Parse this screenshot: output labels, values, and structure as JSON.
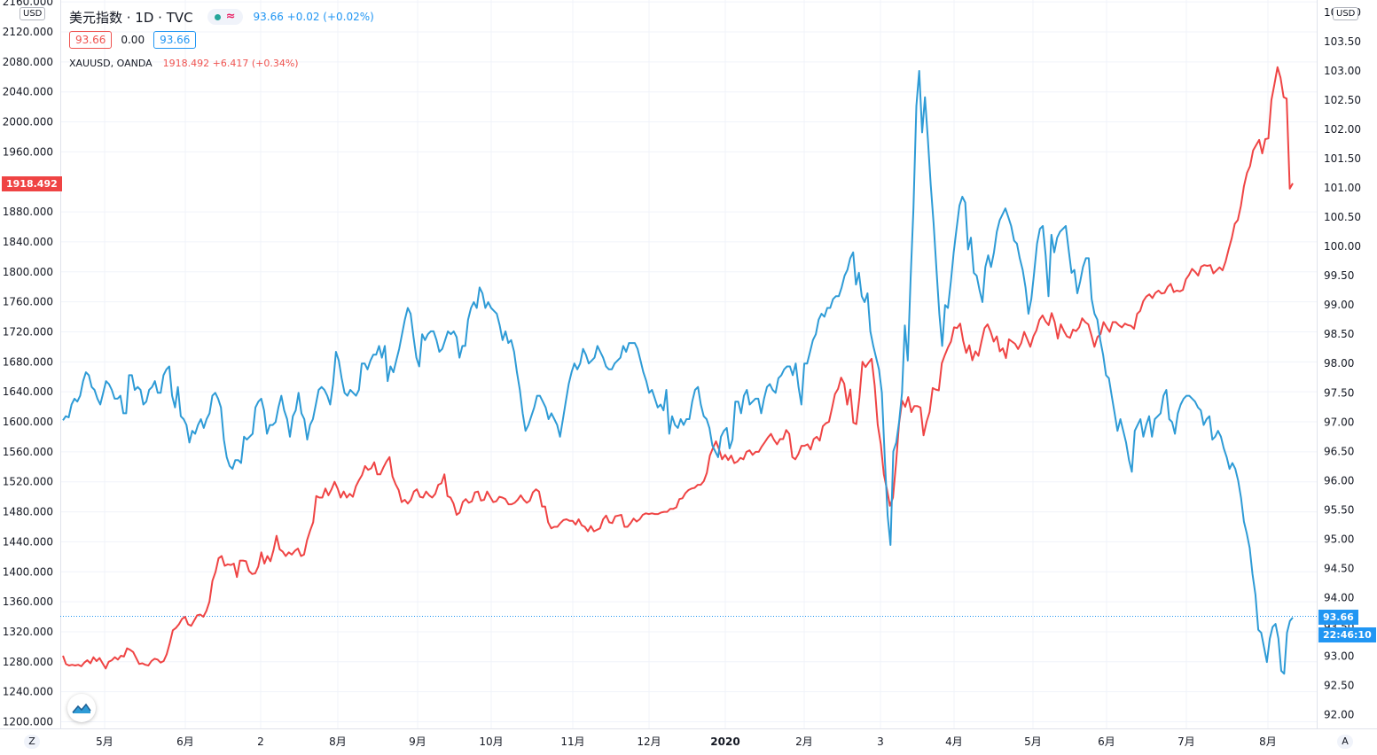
{
  "header": {
    "title": "美元指数 · 1D · TVC",
    "toggle_symbol": "≈",
    "dxy_quote": "93.66 +0.02 (+0.02%)",
    "box_left": "93.66",
    "box_mid": "0.00",
    "box_right": "93.66",
    "xau_name": "XAUUSD, OANDA",
    "xau_quote": "1918.492 +6.417 (+0.34%)"
  },
  "axis_badges": {
    "left_unit": "USD",
    "right_unit": "USD",
    "left_corner": "Z",
    "right_corner": "A"
  },
  "price_tags": {
    "gold": "1918.492",
    "dxy": "93.66",
    "countdown": "22:46:10"
  },
  "colors": {
    "gold": "#ef4444",
    "dxy": "#2e9bd6",
    "dxy_tag": "#2196f3",
    "gold_tag": "#ef4444",
    "grid": "#f0f3fa"
  },
  "chart_data": {
    "type": "line",
    "x_ticks": [
      "5月",
      "6月",
      "2",
      "8月",
      "9月",
      "10月",
      "11月",
      "12月",
      "2020",
      "2月",
      "3",
      "4月",
      "5月",
      "6月",
      "7月",
      "8月"
    ],
    "left_axis": {
      "unit": "USD",
      "ticks": [
        "2160.000",
        "2120.000",
        "2080.000",
        "2040.000",
        "2000.000",
        "1960.000",
        "1880.000",
        "1840.000",
        "1800.000",
        "1760.000",
        "1720.000",
        "1680.000",
        "1640.000",
        "1600.000",
        "1560.000",
        "1520.000",
        "1480.000",
        "1440.000",
        "1400.000",
        "1360.000",
        "1320.000",
        "1280.000",
        "1240.000",
        "1200.000"
      ]
    },
    "right_axis": {
      "unit": "USD",
      "ticks": [
        "104.00",
        "103.50",
        "103.00",
        "102.50",
        "102.00",
        "101.50",
        "101.00",
        "100.50",
        "100.00",
        "99.50",
        "99.00",
        "98.50",
        "98.00",
        "97.50",
        "97.00",
        "96.50",
        "96.00",
        "95.50",
        "95.00",
        "94.50",
        "94.00",
        "93.50",
        "93.00",
        "92.50",
        "92.00"
      ]
    },
    "series": [
      {
        "axis": "left",
        "color": "#ef4444",
        "values": [
          1288,
          1277,
          1275,
          1276,
          1275,
          1276,
          1274,
          1279,
          1282,
          1278,
          1286,
          1281,
          1285,
          1278,
          1271,
          1280,
          1282,
          1286,
          1283,
          1288,
          1287,
          1298,
          1296,
          1293,
          1285,
          1277,
          1278,
          1276,
          1275,
          1281,
          1284,
          1283,
          1279,
          1281,
          1290,
          1305,
          1322,
          1325,
          1330,
          1337,
          1340,
          1330,
          1328,
          1335,
          1342,
          1343,
          1340,
          1348,
          1360,
          1388,
          1400,
          1418,
          1421,
          1408,
          1410,
          1409,
          1411,
          1393,
          1415,
          1415,
          1414,
          1401,
          1397,
          1398,
          1407,
          1426,
          1411,
          1421,
          1414,
          1429,
          1448,
          1430,
          1427,
          1421,
          1426,
          1423,
          1428,
          1431,
          1421,
          1423,
          1442,
          1455,
          1466,
          1501,
          1499,
          1499,
          1511,
          1502,
          1510,
          1520,
          1511,
          1499,
          1507,
          1499,
          1504,
          1500,
          1514,
          1522,
          1529,
          1541,
          1536,
          1538,
          1546,
          1530,
          1530,
          1539,
          1547,
          1553,
          1527,
          1517,
          1509,
          1493,
          1496,
          1491,
          1496,
          1507,
          1510,
          1500,
          1499,
          1507,
          1502,
          1499,
          1504,
          1516,
          1518,
          1530,
          1501,
          1499,
          1491,
          1476,
          1479,
          1493,
          1497,
          1492,
          1494,
          1506,
          1507,
          1495,
          1496,
          1507,
          1500,
          1493,
          1494,
          1500,
          1499,
          1497,
          1490,
          1490,
          1492,
          1496,
          1502,
          1496,
          1492,
          1495,
          1506,
          1510,
          1507,
          1487,
          1487,
          1466,
          1458,
          1460,
          1460,
          1465,
          1469,
          1470,
          1468,
          1468,
          1463,
          1470,
          1462,
          1460,
          1454,
          1461,
          1454,
          1456,
          1458,
          1470,
          1475,
          1466,
          1465,
          1474,
          1475,
          1476,
          1460,
          1460,
          1465,
          1471,
          1467,
          1470,
          1476,
          1478,
          1477,
          1478,
          1477,
          1477,
          1479,
          1480,
          1480,
          1484,
          1484,
          1486,
          1497,
          1498,
          1505,
          1509,
          1511,
          1512,
          1516,
          1516,
          1521,
          1532,
          1555,
          1565,
          1574,
          1563,
          1550,
          1556,
          1549,
          1555,
          1545,
          1547,
          1552,
          1550,
          1560,
          1562,
          1556,
          1560,
          1560,
          1567,
          1573,
          1579,
          1584,
          1576,
          1570,
          1577,
          1577,
          1589,
          1584,
          1553,
          1550,
          1557,
          1568,
          1568,
          1570,
          1563,
          1577,
          1580,
          1575,
          1594,
          1598,
          1600,
          1618,
          1637,
          1644,
          1659,
          1651,
          1623,
          1643,
          1599,
          1597,
          1633,
          1680,
          1673,
          1679,
          1684,
          1648,
          1596,
          1570,
          1530,
          1510,
          1488,
          1499,
          1545,
          1598,
          1628,
          1620,
          1633,
          1613,
          1621,
          1621,
          1619,
          1582,
          1600,
          1613,
          1645,
          1643,
          1642,
          1678,
          1689,
          1699,
          1707,
          1726,
          1725,
          1731,
          1708,
          1692,
          1702,
          1682,
          1694,
          1688,
          1707,
          1725,
          1730,
          1720,
          1707,
          1714,
          1694,
          1698,
          1685,
          1710,
          1707,
          1704,
          1697,
          1705,
          1720,
          1710,
          1700,
          1714,
          1722,
          1736,
          1742,
          1734,
          1729,
          1745,
          1733,
          1711,
          1730,
          1721,
          1714,
          1712,
          1723,
          1721,
          1726,
          1738,
          1733,
          1730,
          1716,
          1700,
          1713,
          1717,
          1733,
          1726,
          1720,
          1733,
          1733,
          1729,
          1726,
          1731,
          1729,
          1728,
          1724,
          1744,
          1748,
          1761,
          1767,
          1770,
          1765,
          1772,
          1775,
          1771,
          1772,
          1780,
          1784,
          1773,
          1775,
          1774,
          1776,
          1790,
          1796,
          1804,
          1800,
          1795,
          1807,
          1809,
          1808,
          1809,
          1798,
          1802,
          1806,
          1802,
          1814,
          1830,
          1845,
          1864,
          1869,
          1888,
          1914,
          1932,
          1941,
          1962,
          1969,
          1976,
          1958,
          1977,
          1978,
          2029,
          2050,
          2073,
          2059,
          2033,
          2031,
          1911,
          1918
        ],
        "first_date": "2019-04-24"
      },
      {
        "axis": "right",
        "color": "#2e9bd6",
        "values": [
          97.03,
          97.1,
          97.08,
          97.3,
          97.4,
          97.35,
          97.45,
          97.7,
          97.85,
          97.8,
          97.6,
          97.55,
          97.4,
          97.3,
          97.5,
          97.7,
          97.65,
          97.55,
          97.4,
          97.4,
          97.45,
          97.15,
          97.15,
          97.8,
          97.8,
          97.55,
          97.6,
          97.55,
          97.3,
          97.35,
          97.55,
          97.6,
          97.7,
          97.5,
          97.5,
          97.8,
          97.9,
          97.95,
          97.45,
          97.25,
          97.6,
          97.1,
          97.05,
          96.95,
          96.65,
          96.85,
          96.8,
          96.95,
          97.05,
          96.9,
          97.05,
          97.15,
          97.45,
          97.5,
          97.4,
          97.25,
          96.7,
          96.4,
          96.25,
          96.2,
          96.35,
          96.35,
          96.3,
          96.75,
          96.7,
          96.75,
          96.8,
          97.25,
          97.35,
          97.4,
          97.2,
          96.8,
          96.95,
          96.95,
          97.0,
          97.25,
          97.45,
          97.2,
          97.05,
          96.75,
          97.1,
          97.2,
          97.5,
          97.15,
          97.05,
          96.7,
          96.95,
          97.05,
          97.3,
          97.55,
          97.6,
          97.55,
          97.45,
          97.3,
          97.65,
          98.2,
          98.05,
          97.75,
          97.5,
          97.45,
          97.55,
          97.5,
          97.45,
          97.55,
          98.0,
          98.0,
          97.9,
          98.05,
          98.15,
          98.15,
          98.3,
          98.1,
          98.3,
          97.7,
          97.95,
          97.85,
          98.05,
          98.25,
          98.5,
          98.75,
          98.95,
          98.85,
          98.45,
          98.1,
          97.95,
          98.5,
          98.4,
          98.5,
          98.55,
          98.55,
          98.4,
          98.2,
          98.25,
          98.4,
          98.55,
          98.5,
          98.55,
          98.45,
          98.1,
          98.3,
          98.3,
          98.75,
          98.95,
          99.05,
          98.95,
          99.3,
          99.2,
          98.95,
          99.05,
          98.95,
          98.9,
          98.85,
          98.65,
          98.4,
          98.55,
          98.35,
          98.4,
          98.2,
          97.85,
          97.55,
          97.15,
          96.85,
          96.95,
          97.1,
          97.25,
          97.45,
          97.45,
          97.35,
          97.25,
          97.05,
          97.15,
          97.05,
          96.95,
          96.75,
          97.05,
          97.35,
          97.65,
          97.85,
          98.0,
          97.9,
          98.0,
          98.25,
          98.15,
          98.0,
          98.05,
          98.1,
          98.3,
          98.2,
          98.1,
          97.95,
          97.9,
          97.9,
          98.0,
          98.05,
          98.1,
          98.3,
          98.2,
          98.35,
          98.35,
          98.35,
          98.25,
          98.05,
          97.85,
          97.7,
          97.5,
          97.55,
          97.4,
          97.25,
          97.3,
          97.2,
          97.55,
          96.8,
          97.1,
          96.95,
          96.9,
          97.05,
          96.95,
          97.05,
          97.05,
          97.35,
          97.55,
          97.6,
          97.3,
          97.1,
          97.05,
          96.9,
          96.6,
          96.5,
          96.4,
          96.75,
          96.85,
          96.9,
          96.55,
          96.7,
          97.35,
          97.35,
          97.15,
          97.45,
          97.55,
          97.3,
          97.35,
          97.4,
          97.4,
          97.15,
          97.4,
          97.6,
          97.65,
          97.55,
          97.5,
          97.75,
          97.8,
          97.9,
          97.95,
          97.95,
          97.8,
          98.0,
          97.6,
          97.3,
          98.0,
          98.0,
          98.2,
          98.4,
          98.5,
          98.75,
          98.85,
          98.8,
          98.95,
          98.95,
          99.1,
          99.15,
          99.15,
          99.3,
          99.5,
          99.6,
          99.8,
          99.9,
          99.35,
          99.55,
          99.15,
          99.05,
          99.2,
          98.55,
          98.3,
          98.1,
          97.9,
          97.5,
          96.4,
          95.4,
          94.9,
          96.5,
          96.65,
          97.0,
          97.5,
          98.65,
          98.05,
          99.45,
          100.65,
          102.4,
          103.0,
          101.95,
          102.55,
          101.85,
          101.05,
          100.4,
          99.6,
          98.85,
          98.3,
          99.0,
          98.95,
          99.4,
          99.9,
          100.3,
          100.7,
          100.85,
          100.75,
          99.95,
          100.15,
          99.55,
          99.5,
          99.25,
          99.05,
          99.65,
          99.85,
          99.65,
          99.9,
          100.25,
          100.45,
          100.55,
          100.65,
          100.5,
          100.35,
          100.1,
          100.05,
          99.8,
          99.6,
          99.3,
          98.85,
          99.1,
          99.55,
          100.05,
          100.3,
          100.35,
          99.85,
          99.15,
          100.2,
          99.9,
          100.15,
          100.25,
          100.3,
          100.35,
          99.95,
          99.55,
          99.6,
          99.2,
          99.4,
          99.65,
          99.8,
          99.8,
          99.1,
          98.85,
          98.75,
          98.4,
          98.15,
          97.8,
          97.75,
          97.45,
          97.15,
          96.85,
          97.05,
          96.85,
          96.65,
          96.35,
          96.15,
          96.85,
          96.95,
          97.05,
          96.75,
          96.95,
          97.1,
          96.75,
          97.05,
          97.1,
          97.15,
          97.45,
          97.55,
          97.05,
          97.0,
          96.8,
          97.15,
          97.3,
          97.4,
          97.45,
          97.45,
          97.4,
          97.35,
          97.25,
          97.2,
          96.95,
          97.05,
          97.1,
          96.7,
          96.75,
          96.85,
          96.75,
          96.55,
          96.4,
          96.2,
          96.3,
          96.2,
          96.0,
          95.7,
          95.3,
          95.1,
          94.85,
          94.4,
          94.05,
          93.45,
          93.4,
          93.15,
          92.9,
          93.3,
          93.5,
          93.55,
          93.3,
          92.75,
          92.7,
          93.4,
          93.6,
          93.66
        ]
      }
    ]
  }
}
